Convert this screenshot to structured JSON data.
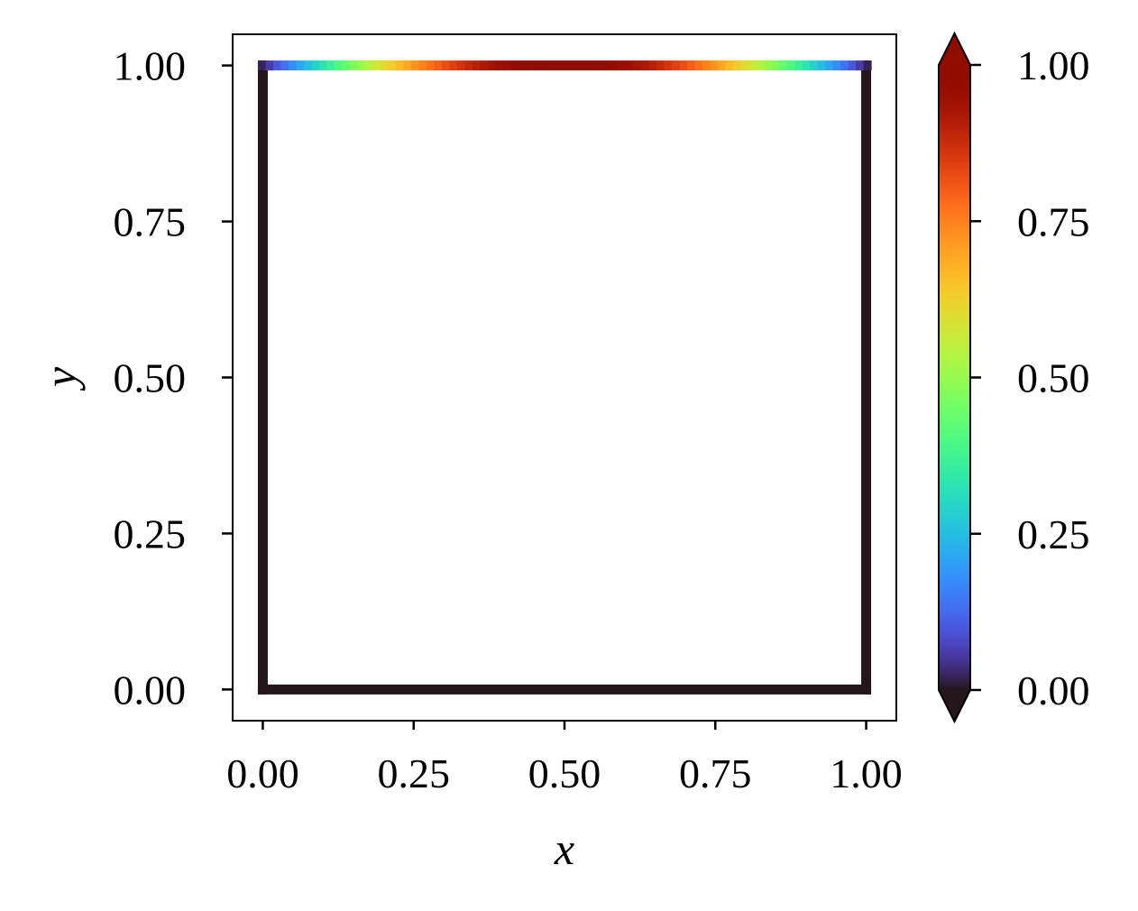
{
  "chart_data": {
    "type": "scatter",
    "xlabel": "x",
    "ylabel": "y",
    "xlim": [
      -0.05,
      1.05
    ],
    "ylim": [
      -0.05,
      1.05
    ],
    "xticks": [
      "0.00",
      "0.25",
      "0.50",
      "0.75",
      "1.00"
    ],
    "yticks": [
      "0.00",
      "0.25",
      "0.50",
      "0.75",
      "1.00"
    ],
    "grid": false,
    "series": [
      {
        "edge": "top",
        "y": 1.0,
        "x_range": [
          0,
          1
        ],
        "points": 80,
        "value": "sin(pi*x)"
      },
      {
        "edge": "bottom",
        "y": 0.0,
        "x_range": [
          0,
          1
        ],
        "value": 0
      },
      {
        "edge": "left",
        "x": 0.0,
        "y_range": [
          0,
          1
        ],
        "value": 0
      },
      {
        "edge": "right",
        "x": 1.0,
        "y_range": [
          0,
          1
        ],
        "value": 0
      }
    ],
    "colorbar": {
      "colormap": "turbo",
      "range": [
        0,
        1
      ],
      "extend": "both",
      "ticks": [
        "0.00",
        "0.25",
        "0.50",
        "0.75",
        "1.00"
      ]
    }
  }
}
